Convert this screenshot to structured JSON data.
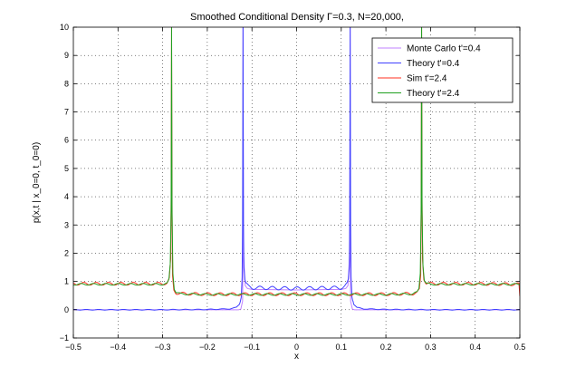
{
  "chart_data": {
    "type": "line",
    "title": "Smoothed Conditional Density Γ=0.3, N=20,000,",
    "xlabel": "x",
    "ylabel": "p(x,t | x_0=0, t_0=0)",
    "xlim": [
      -0.5,
      0.5
    ],
    "ylim": [
      -1,
      10
    ],
    "xticks": [
      -0.5,
      -0.4,
      -0.3,
      -0.2,
      -0.1,
      0,
      0.1,
      0.2,
      0.3,
      0.4,
      0.5
    ],
    "xtick_labels": [
      "−0.5",
      "−0.4",
      "−0.3",
      "−0.2",
      "−0.1",
      "0",
      "0.1",
      "0.2",
      "0.3",
      "0.4",
      "0.5"
    ],
    "yticks": [
      -1,
      0,
      1,
      2,
      3,
      4,
      5,
      6,
      7,
      8,
      9,
      10
    ],
    "ytick_labels": [
      "−1",
      "0",
      "1",
      "2",
      "3",
      "4",
      "5",
      "6",
      "7",
      "8",
      "9",
      "10"
    ],
    "grid": true,
    "legend_position": "top-right",
    "series": [
      {
        "name": "Monte Carlo t'=0.4",
        "color": "#c080ff",
        "x": [
          -0.5,
          -0.3,
          -0.2,
          -0.15,
          -0.13,
          -0.125,
          -0.121,
          -0.12,
          -0.12,
          -0.119,
          -0.115,
          -0.11,
          -0.1,
          0,
          0.1,
          0.11,
          0.115,
          0.119,
          0.12,
          0.12,
          0.121,
          0.125,
          0.13,
          0.15,
          0.2,
          0.3,
          0.5
        ],
        "y": [
          0,
          0,
          0,
          0,
          0,
          0.02,
          0.3,
          2,
          10,
          2,
          0.85,
          0.75,
          0.72,
          0.7,
          0.72,
          0.75,
          0.85,
          2,
          10,
          2,
          0.3,
          0.02,
          0,
          0,
          0,
          0,
          0
        ]
      },
      {
        "name": "Theory t'=0.4",
        "color": "#4040ff",
        "x": [
          -0.5,
          -0.3,
          -0.2,
          -0.15,
          -0.135,
          -0.128,
          -0.124,
          -0.122,
          -0.121,
          -0.12,
          -0.119,
          -0.118,
          -0.116,
          -0.113,
          -0.108,
          -0.1,
          0,
          0.1,
          0.108,
          0.113,
          0.116,
          0.118,
          0.119,
          0.12,
          0.121,
          0.122,
          0.124,
          0.128,
          0.135,
          0.15,
          0.2,
          0.3,
          0.5
        ],
        "y": [
          0,
          0,
          0.01,
          0.03,
          0.08,
          0.2,
          0.5,
          1.2,
          3,
          10,
          3,
          1.5,
          1.05,
          0.9,
          0.82,
          0.78,
          0.75,
          0.78,
          0.82,
          0.9,
          1.05,
          1.5,
          3,
          10,
          3,
          1.2,
          0.5,
          0.2,
          0.08,
          0.03,
          0.01,
          0,
          0
        ],
        "oscillation": 0.06
      },
      {
        "name": "Sim t'=2.4",
        "color": "#ff3020",
        "x": [
          -0.5,
          -0.4,
          -0.3,
          -0.29,
          -0.285,
          -0.282,
          -0.281,
          -0.28,
          -0.279,
          -0.278,
          -0.275,
          -0.27,
          -0.26,
          -0.2,
          -0.12,
          0,
          0.12,
          0.2,
          0.26,
          0.27,
          0.275,
          0.278,
          0.279,
          0.28,
          0.281,
          0.282,
          0.285,
          0.29,
          0.3,
          0.4,
          0.498,
          0.5
        ],
        "y": [
          0.92,
          0.92,
          0.92,
          0.95,
          1.1,
          1.8,
          4,
          10,
          4,
          1.2,
          0.7,
          0.6,
          0.57,
          0.55,
          0.55,
          0.55,
          0.55,
          0.55,
          0.57,
          0.6,
          0.7,
          1.2,
          4,
          10,
          4,
          1.8,
          1.1,
          0.95,
          0.92,
          0.92,
          0.9,
          0.45
        ],
        "oscillation": 0.05
      },
      {
        "name": "Theory t'=2.4",
        "color": "#20a020",
        "x": [
          -0.5,
          -0.4,
          -0.3,
          -0.29,
          -0.286,
          -0.283,
          -0.281,
          -0.28,
          -0.279,
          -0.277,
          -0.274,
          -0.27,
          -0.26,
          -0.2,
          -0.12,
          0,
          0.12,
          0.2,
          0.26,
          0.27,
          0.274,
          0.277,
          0.279,
          0.28,
          0.281,
          0.283,
          0.286,
          0.29,
          0.3,
          0.4,
          0.5
        ],
        "y": [
          0.9,
          0.9,
          0.9,
          0.93,
          1.05,
          1.6,
          3.5,
          10,
          3.5,
          1.3,
          0.75,
          0.62,
          0.56,
          0.54,
          0.54,
          0.54,
          0.54,
          0.54,
          0.56,
          0.62,
          0.75,
          1.3,
          3.5,
          10,
          3.5,
          1.6,
          1.05,
          0.93,
          0.9,
          0.9,
          0.9
        ],
        "oscillation": 0.03
      }
    ]
  }
}
